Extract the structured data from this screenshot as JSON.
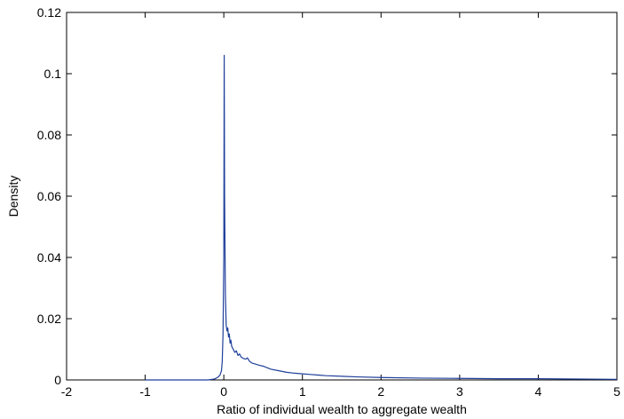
{
  "chart_data": {
    "type": "line",
    "title": "",
    "xlabel": "Ratio of individual wealth to aggregate wealth",
    "ylabel": "Density",
    "xlim": [
      -2,
      5
    ],
    "ylim": [
      0,
      0.12
    ],
    "x_ticks": [
      -2,
      -1,
      0,
      1,
      2,
      3,
      4,
      5
    ],
    "x_tick_labels": [
      "-2",
      "-1",
      "0",
      "1",
      "2",
      "3",
      "4",
      "5"
    ],
    "y_ticks": [
      0,
      0.02,
      0.04,
      0.06,
      0.08,
      0.1,
      0.12
    ],
    "y_tick_labels": [
      "0",
      "0.02",
      "0.04",
      "0.06",
      "0.08",
      "0.1",
      "0.12"
    ],
    "grid": false,
    "legend": "none",
    "series": [
      {
        "color": "#1f3f9a",
        "x": [
          -1.0,
          -0.5,
          -0.2,
          -0.12,
          -0.08,
          -0.05,
          -0.03,
          -0.02,
          -0.01,
          0.0,
          0.005,
          0.01,
          0.02,
          0.03,
          0.04,
          0.05,
          0.06,
          0.07,
          0.08,
          0.09,
          0.1,
          0.12,
          0.14,
          0.16,
          0.18,
          0.2,
          0.22,
          0.25,
          0.28,
          0.3,
          0.33,
          0.36,
          0.4,
          0.45,
          0.5,
          0.55,
          0.6,
          0.7,
          0.8,
          0.9,
          1.0,
          1.1,
          1.2,
          1.3,
          1.5,
          1.7,
          2.0,
          2.5,
          3.0,
          3.5,
          4.0,
          4.5,
          5.0
        ],
        "y": [
          0.0,
          0.0,
          0.0,
          0.0003,
          0.0008,
          0.0015,
          0.003,
          0.006,
          0.015,
          0.04,
          0.106,
          0.06,
          0.028,
          0.018,
          0.016,
          0.017,
          0.014,
          0.015,
          0.012,
          0.013,
          0.011,
          0.01,
          0.009,
          0.0095,
          0.008,
          0.0085,
          0.0075,
          0.007,
          0.0068,
          0.0072,
          0.006,
          0.0055,
          0.0052,
          0.0048,
          0.0045,
          0.004,
          0.0035,
          0.003,
          0.0025,
          0.0022,
          0.002,
          0.0018,
          0.0016,
          0.0014,
          0.0012,
          0.001,
          0.0008,
          0.0006,
          0.0005,
          0.0004,
          0.0004,
          0.0003,
          0.0002
        ]
      }
    ]
  }
}
